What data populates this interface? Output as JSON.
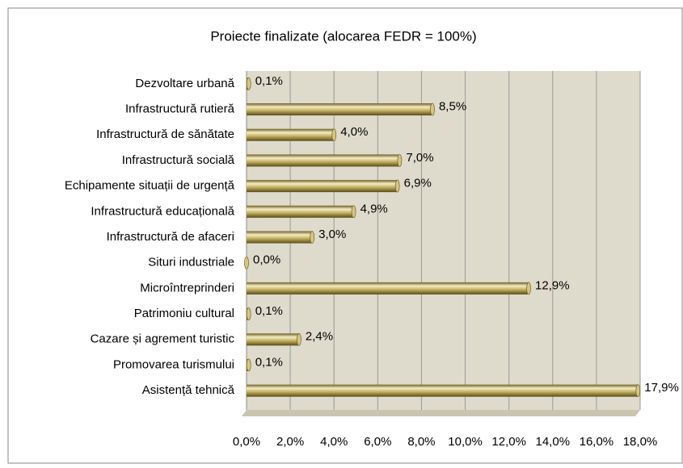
{
  "chart_data": {
    "type": "bar",
    "orientation": "horizontal",
    "title": "Proiecte finalizate  (alocarea FEDR = 100%)",
    "categories": [
      "Dezvoltare urbană",
      "Infrastructură rutieră",
      "Infrastructură de sănătate",
      "Infrastructură socială",
      "Echipamente situații de urgență",
      "Infrastructură educațională",
      "Infrastructură de afaceri",
      "Situri industriale",
      "Microîntreprinderi",
      "Patrimoniu cultural",
      "Cazare și agrement turistic",
      "Promovarea turismului",
      "Asistență tehnică"
    ],
    "values": [
      0.1,
      8.5,
      4.0,
      7.0,
      6.9,
      4.9,
      3.0,
      0.0,
      12.9,
      0.1,
      2.4,
      0.1,
      17.9
    ],
    "value_labels": [
      "0,1%",
      "8,5%",
      "4,0%",
      "7,0%",
      "6,9%",
      "4,9%",
      "3,0%",
      "0,0%",
      "12,9%",
      "0,1%",
      "2,4%",
      "0,1%",
      "17,9%"
    ],
    "color": "#b8a654",
    "xlim": [
      0,
      18
    ],
    "xticks": [
      {
        "value": 0,
        "label": "0,0%"
      },
      {
        "value": 2,
        "label": "2,0%"
      },
      {
        "value": 4,
        "label": "4,0%"
      },
      {
        "value": 6,
        "label": "6,0%"
      },
      {
        "value": 8,
        "label": "8,0%"
      },
      {
        "value": 10,
        "label": "10,0%"
      },
      {
        "value": 12,
        "label": "12,0%"
      },
      {
        "value": 14,
        "label": "14,0%"
      },
      {
        "value": 16,
        "label": "16,0%"
      },
      {
        "value": 18,
        "label": "18,0%"
      }
    ],
    "grid": true
  }
}
